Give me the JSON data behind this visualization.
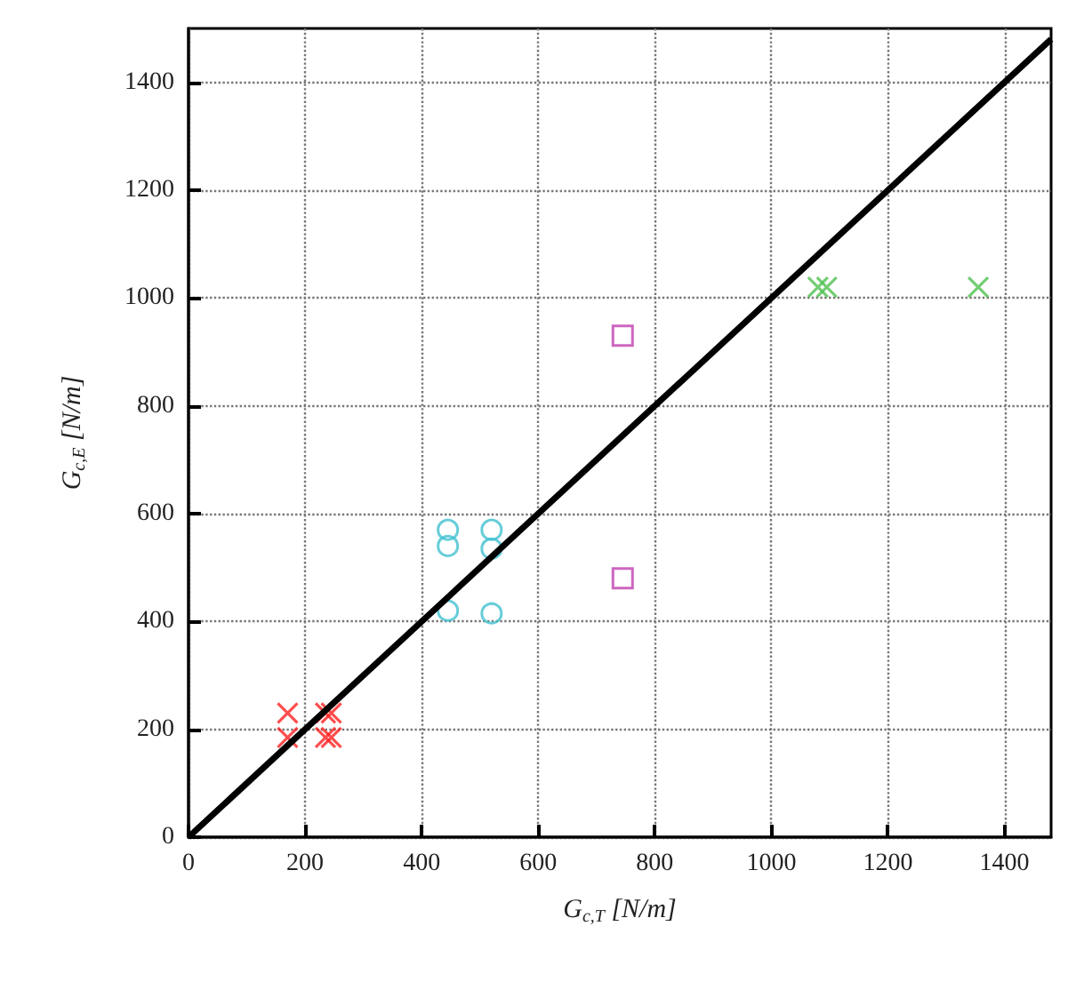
{
  "chart_data": {
    "type": "scatter",
    "xlabel": "G$_{c,T}$ [N/m]",
    "ylabel": "G$_{c,E}$ [N/m]",
    "xlim": [
      0,
      1480
    ],
    "ylim": [
      0,
      1500
    ],
    "xticks": [
      0,
      200,
      400,
      600,
      800,
      1000,
      1200,
      1400
    ],
    "yticks": [
      0,
      200,
      400,
      600,
      800,
      1000,
      1200,
      1400
    ],
    "grid": true,
    "series": [
      {
        "color": "#ff2020",
        "marker": "cross",
        "x": [
          170,
          170,
          235,
          245,
          235,
          245
        ],
        "values": [
          230,
          185,
          230,
          230,
          185,
          185
        ]
      },
      {
        "color": "#50c050",
        "marker": "cross",
        "x": [
          1080,
          1095,
          1355
        ],
        "values": [
          1020,
          1020,
          1020
        ]
      },
      {
        "color": "#c040b0",
        "marker": "square",
        "x": [
          745,
          745
        ],
        "values": [
          930,
          480
        ]
      },
      {
        "color": "#40c0d0",
        "marker": "circle",
        "x": [
          445,
          445,
          445,
          520,
          520,
          520
        ],
        "values": [
          570,
          540,
          420,
          570,
          535,
          415
        ]
      },
      {
        "type": "line",
        "color": "#000000",
        "marker": "none",
        "x": [
          0,
          1480
        ],
        "values": [
          0,
          1480
        ]
      }
    ]
  }
}
